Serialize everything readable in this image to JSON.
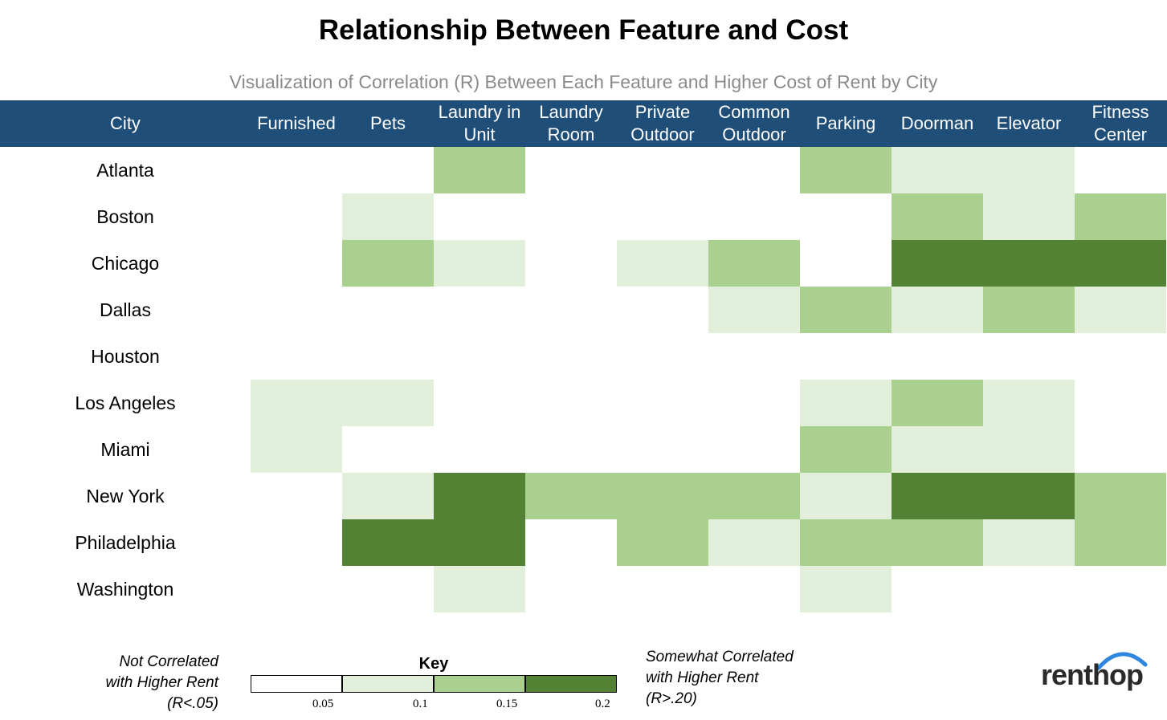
{
  "title": "Relationship Between Feature and Cost",
  "subtitle": "Visualization of Correlation (R) Between Each Feature and Higher Cost of Rent by City",
  "colors": {
    "header_bg": "#1f4e79",
    "level_0": "#ffffff",
    "level_1": "#e2efda",
    "level_2": "#a9d08e",
    "level_3": "#548235"
  },
  "legend": {
    "title": "Key",
    "not_correlated": [
      "Not Correlated",
      "with Higher Rent",
      "(R<.05)"
    ],
    "somewhat_correlated": [
      "Somewhat Correlated",
      "with Higher Rent",
      "(R>.20)"
    ],
    "ticks": [
      "0.05",
      "0.1",
      "0.15",
      "0.2"
    ]
  },
  "logo": "renthop",
  "chart_data": {
    "type": "heatmap",
    "title": "Relationship Between Feature and Cost",
    "subtitle": "Visualization of Correlation (R) Between Each Feature and Higher Cost of Rent by City",
    "row_header": "City",
    "columns": [
      "Furnished",
      "Pets",
      "Laundry in Unit",
      "Laundry Room",
      "Private Outdoor",
      "Common Outdoor",
      "Parking",
      "Doorman",
      "Elevator",
      "Fitness Center"
    ],
    "rows": [
      "Atlanta",
      "Boston",
      "Chicago",
      "Dallas",
      "Houston",
      "Los Angeles",
      "Miami",
      "New York",
      "Philadelphia",
      "Washington"
    ],
    "levels_description": [
      "R<.05",
      "0.05-0.1",
      "0.1-0.15",
      "R>.20"
    ],
    "values": [
      [
        0,
        0,
        2,
        0,
        0,
        0,
        2,
        1,
        1,
        0
      ],
      [
        0,
        1,
        0,
        0,
        0,
        0,
        0,
        2,
        1,
        2
      ],
      [
        0,
        2,
        1,
        0,
        1,
        2,
        0,
        3,
        3,
        3
      ],
      [
        0,
        0,
        0,
        0,
        0,
        1,
        2,
        1,
        2,
        1
      ],
      [
        0,
        0,
        0,
        0,
        0,
        0,
        0,
        0,
        0,
        0
      ],
      [
        1,
        1,
        0,
        0,
        0,
        0,
        1,
        2,
        1,
        0
      ],
      [
        1,
        0,
        0,
        0,
        0,
        0,
        2,
        1,
        1,
        0
      ],
      [
        0,
        1,
        3,
        2,
        2,
        2,
        1,
        3,
        3,
        2
      ],
      [
        0,
        3,
        3,
        0,
        2,
        1,
        2,
        2,
        1,
        2
      ],
      [
        0,
        0,
        1,
        0,
        0,
        0,
        1,
        0,
        0,
        0
      ]
    ]
  }
}
